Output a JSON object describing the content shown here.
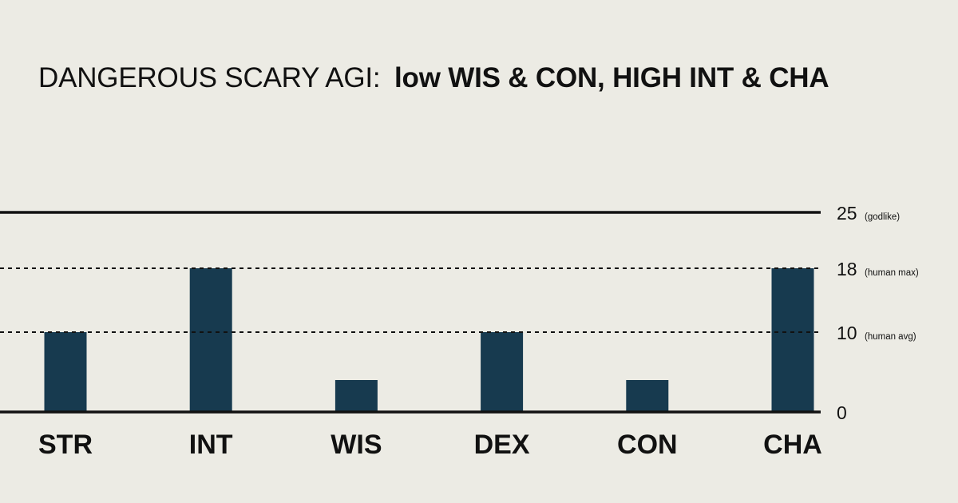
{
  "title": {
    "prefix": "DANGEROUS SCARY AGI:",
    "emphasis": "low WIS & CON, HIGH INT & CHA"
  },
  "colors": {
    "background": "#ecebe4",
    "bar": "#173a4f",
    "ink": "#111111"
  },
  "chart_data": {
    "type": "bar",
    "title": "DANGEROUS SCARY AGI: low WIS & CON, HIGH INT & CHA",
    "categories": [
      "STR",
      "INT",
      "WIS",
      "DEX",
      "CON",
      "CHA"
    ],
    "values": [
      10,
      18,
      4,
      10,
      4,
      18
    ],
    "ylim": [
      0,
      25
    ],
    "xlabel": "",
    "ylabel": "",
    "grid": false,
    "legend": "none",
    "reference_lines": [
      {
        "value": 25,
        "label": "25",
        "note": "(godlike)",
        "style": "solid"
      },
      {
        "value": 18,
        "label": "18",
        "note": "(human max)",
        "style": "dashed"
      },
      {
        "value": 10,
        "label": "10",
        "note": "(human avg)",
        "style": "dashed"
      },
      {
        "value": 0,
        "label": "0",
        "note": "",
        "style": "solid"
      }
    ]
  }
}
